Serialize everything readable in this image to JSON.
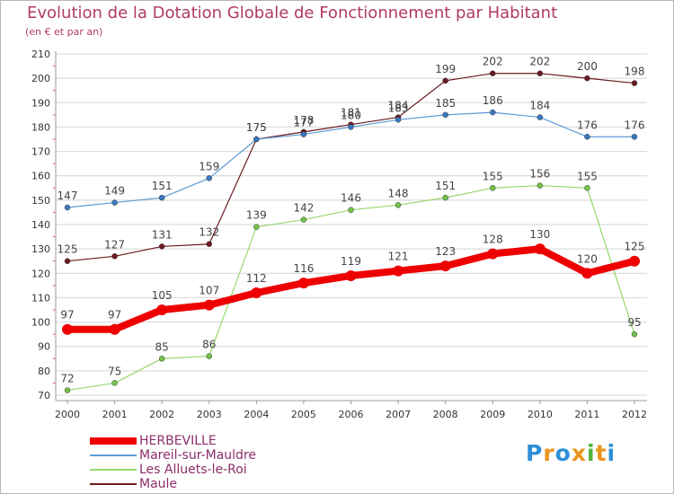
{
  "title": "Evolution de la Dotation Globale de Fonctionnement par Habitant",
  "subtitle": "(en € et par an)",
  "logo": "Proxiti",
  "colors": {
    "grid": "#d4d4d4",
    "axis_text": "#333333",
    "label_text": "#444444",
    "title": "#b03a64",
    "legend_text": "#8c2e6a",
    "minor_tick": "#e06060"
  },
  "chart_data": {
    "type": "line",
    "x": [
      "2000",
      "2001",
      "2002",
      "2003",
      "2004",
      "2005",
      "2006",
      "2007",
      "2008",
      "2009",
      "2010",
      "2011",
      "2012"
    ],
    "ylim": [
      70,
      210
    ],
    "yticks": [
      70,
      80,
      90,
      100,
      110,
      120,
      130,
      140,
      150,
      160,
      170,
      180,
      190,
      200,
      210
    ],
    "grid": "horizontal",
    "legend_position": "bottom-left",
    "series": [
      {
        "name": "Maule",
        "color": "#6b1a1f",
        "dot": "#6b1a1f",
        "width": 1.2,
        "values": [
          125,
          127,
          131,
          132,
          175,
          178,
          181,
          184,
          199,
          202,
          202,
          200,
          198
        ]
      },
      {
        "name": "Mareil-sur-Mauldre",
        "color": "#5b9bd5",
        "dot": "#3a78bf",
        "width": 1.2,
        "values": [
          147,
          149,
          151,
          159,
          175,
          177,
          180,
          183,
          185,
          186,
          184,
          176,
          176
        ]
      },
      {
        "name": "Les Alluets-le-Roi",
        "color": "#95d86a",
        "dot": "#73c24a",
        "width": 1.2,
        "values": [
          72,
          75,
          85,
          86,
          139,
          142,
          146,
          148,
          151,
          155,
          156,
          155,
          95
        ]
      },
      {
        "name": "HERBEVILLE",
        "color": "#ee0000",
        "dot": "#ee0000",
        "width": 8,
        "values": [
          97,
          97,
          105,
          107,
          112,
          116,
          119,
          121,
          123,
          128,
          130,
          120,
          125
        ]
      }
    ]
  },
  "legend": [
    {
      "name": "HERBEVILLE",
      "color": "#ee0000",
      "thickness": 8
    },
    {
      "name": "Mareil-sur-Mauldre",
      "color": "#5b9bd5",
      "thickness": 2
    },
    {
      "name": "Les Alluets-le-Roi",
      "color": "#95d86a",
      "thickness": 2
    },
    {
      "name": "Maule",
      "color": "#6b1a1f",
      "thickness": 2
    }
  ]
}
